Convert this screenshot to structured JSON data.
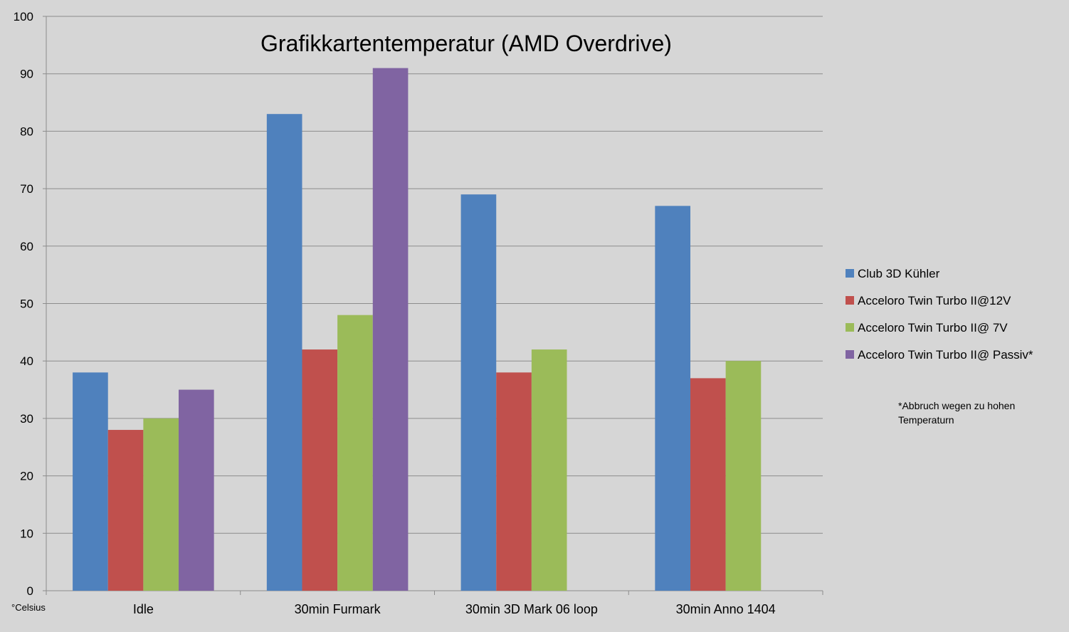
{
  "chart_data": {
    "type": "bar",
    "title": "Grafikkartentemperatur (AMD Overdrive)",
    "xlabel": "",
    "ylabel": "",
    "unit_label": "°Celsius",
    "categories": [
      "Idle",
      "30min Furmark",
      "30min 3D Mark 06 loop",
      "30min Anno 1404"
    ],
    "series": [
      {
        "name": "Club 3D Kühler",
        "color": "#4f81bd",
        "values": [
          38,
          83,
          69,
          67
        ]
      },
      {
        "name": "Acceloro Twin Turbo II@12V",
        "color": "#c0504d",
        "values": [
          28,
          42,
          38,
          37
        ]
      },
      {
        "name": "Acceloro Twin Turbo II@ 7V",
        "color": "#9bbb59",
        "values": [
          30,
          48,
          42,
          40
        ]
      },
      {
        "name": "Acceloro Twin Turbo II@ Passiv*",
        "color": "#8064a2",
        "values": [
          35,
          91,
          null,
          null
        ]
      }
    ],
    "ylim": [
      0,
      100
    ],
    "yticks": [
      0,
      10,
      20,
      30,
      40,
      50,
      60,
      70,
      80,
      90,
      100
    ],
    "grid": true,
    "legend_position": "right",
    "note_lines": [
      "*Abbruch wegen zu hohen",
      "Temperaturn"
    ]
  }
}
